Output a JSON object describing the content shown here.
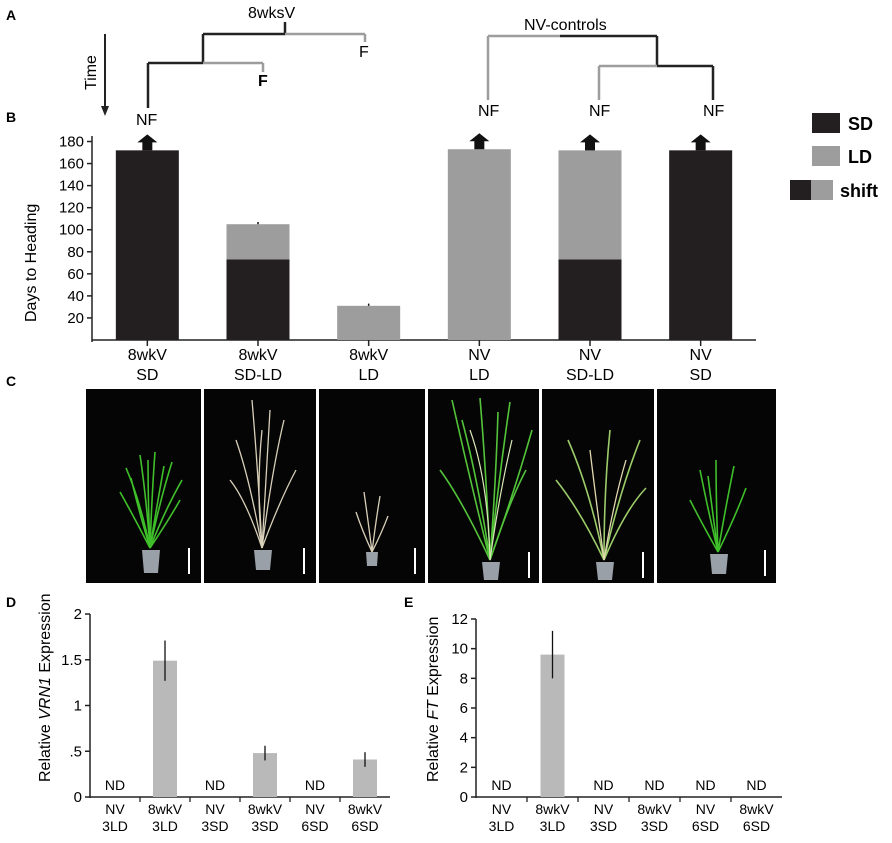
{
  "colors": {
    "sd": "#231f20",
    "ld": "#9d9d9d",
    "expr_bar": "#b9b9b9",
    "photo_bg": "#050505",
    "grass": "#3fbf2a",
    "straw": "#d8cfb8"
  },
  "panelA": {
    "letter": "A",
    "time_label": "Time",
    "vernalized_label": "8wksV",
    "controls_label": "NV-controls",
    "outcomes": [
      "NF",
      "F",
      "F",
      "NF",
      "NF",
      "NF"
    ]
  },
  "panelB": {
    "letter": "B",
    "legend": {
      "sd": "SD",
      "ld": "LD",
      "shift": "shift"
    }
  },
  "panelC": {
    "letter": "C"
  },
  "panelD": {
    "letter": "D"
  },
  "panelE": {
    "letter": "E"
  },
  "chart_data": [
    {
      "type": "bar",
      "title": "",
      "ylabel": "Days to Heading",
      "ylim": [
        0,
        185
      ],
      "yticks": [
        20,
        40,
        60,
        80,
        100,
        120,
        140,
        160,
        180
      ],
      "categories": [
        {
          "line1": "8wkV",
          "line2": "SD"
        },
        {
          "line1": "8wkV",
          "line2": "SD-LD"
        },
        {
          "line1": "8wkV",
          "line2": "LD"
        },
        {
          "line1": "NV",
          "line2": "LD"
        },
        {
          "line1": "NV",
          "line2": "SD-LD"
        },
        {
          "line1": "NV",
          "line2": "SD"
        }
      ],
      "series": [
        {
          "name": "SD",
          "values": [
            172,
            73,
            0,
            0,
            73,
            172
          ]
        },
        {
          "name": "LD",
          "values": [
            0,
            32,
            31,
            173,
            99,
            0
          ]
        }
      ],
      "error": [
        0,
        2,
        2,
        0,
        0,
        0
      ],
      "not_flowered_arrow": [
        true,
        false,
        false,
        true,
        true,
        true
      ]
    },
    {
      "type": "bar",
      "ylabel_pre": "Relative ",
      "ylabel_gene": "VRN1",
      "ylabel_post": " Expression",
      "ylim": [
        0,
        2
      ],
      "yticks": [
        {
          "value": 0,
          "label": "0"
        },
        {
          "value": 0.5,
          "label": ".5"
        },
        {
          "value": 1,
          "label": "1"
        },
        {
          "value": 1.5,
          "label": "1.5"
        },
        {
          "value": 2,
          "label": "2"
        }
      ],
      "categories": [
        {
          "line1": "NV",
          "line2": "3LD"
        },
        {
          "line1": "8wkV",
          "line2": "3LD"
        },
        {
          "line1": "NV",
          "line2": "3SD"
        },
        {
          "line1": "8wkV",
          "line2": "3SD"
        },
        {
          "line1": "NV",
          "line2": "6SD"
        },
        {
          "line1": "8wkV",
          "line2": "6SD"
        }
      ],
      "values": [
        null,
        1.49,
        null,
        0.48,
        null,
        0.41
      ],
      "error": [
        0,
        0.22,
        0,
        0.08,
        0,
        0.08
      ],
      "nd_label": "ND"
    },
    {
      "type": "bar",
      "ylabel_pre": "Relative ",
      "ylabel_gene": "FT",
      "ylabel_post": " Expression",
      "ylim": [
        0,
        12
      ],
      "yticks": [
        {
          "value": 0,
          "label": "0"
        },
        {
          "value": 2,
          "label": "2"
        },
        {
          "value": 4,
          "label": "4"
        },
        {
          "value": 6,
          "label": "6"
        },
        {
          "value": 8,
          "label": "8"
        },
        {
          "value": 10,
          "label": "10"
        },
        {
          "value": 12,
          "label": "12"
        }
      ],
      "categories": [
        {
          "line1": "NV",
          "line2": "3LD"
        },
        {
          "line1": "8wkV",
          "line2": "3LD"
        },
        {
          "line1": "NV",
          "line2": "3SD"
        },
        {
          "line1": "8wkV",
          "line2": "3SD"
        },
        {
          "line1": "NV",
          "line2": "6SD"
        },
        {
          "line1": "8wkV",
          "line2": "6SD"
        }
      ],
      "values": [
        null,
        9.6,
        null,
        null,
        null,
        null
      ],
      "error": [
        0,
        1.6,
        0,
        0,
        0,
        0
      ],
      "nd_label": "ND"
    }
  ]
}
